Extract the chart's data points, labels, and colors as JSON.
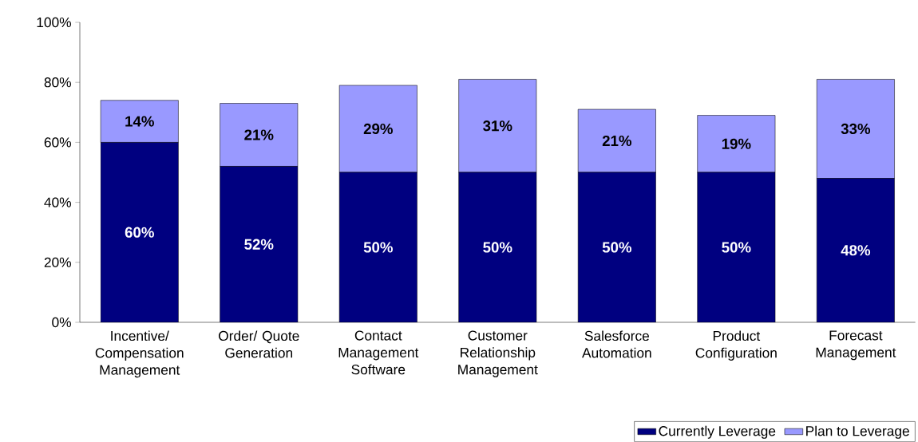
{
  "chart_data": {
    "type": "bar",
    "stacked": true,
    "categories": [
      "Incentive/ Compensation Management",
      "Order/ Quote Generation",
      "Contact Management Software",
      "Customer Relationship Management",
      "Salesforce Automation",
      "Product Configuration",
      "Forecast Management"
    ],
    "series": [
      {
        "name": "Currently Leverage",
        "color": "#000080",
        "values": [
          60,
          52,
          50,
          50,
          50,
          50,
          48
        ],
        "value_labels": [
          "60%",
          "52%",
          "50%",
          "50%",
          "50%",
          "50%",
          "48%"
        ]
      },
      {
        "name": "Plan to Leverage",
        "color": "#9999ff",
        "values": [
          14,
          21,
          29,
          31,
          21,
          19,
          33
        ],
        "value_labels": [
          "14%",
          "21%",
          "29%",
          "31%",
          "21%",
          "19%",
          "33%"
        ]
      }
    ],
    "ylim": [
      0,
      100
    ],
    "yticks": [
      {
        "value": 0,
        "label": "0%"
      },
      {
        "value": 20,
        "label": "20%"
      },
      {
        "value": 40,
        "label": "40%"
      },
      {
        "value": 60,
        "label": "60%"
      },
      {
        "value": 80,
        "label": "80%"
      },
      {
        "value": 100,
        "label": "100%"
      }
    ],
    "grid": false,
    "legend": "bottom right"
  }
}
